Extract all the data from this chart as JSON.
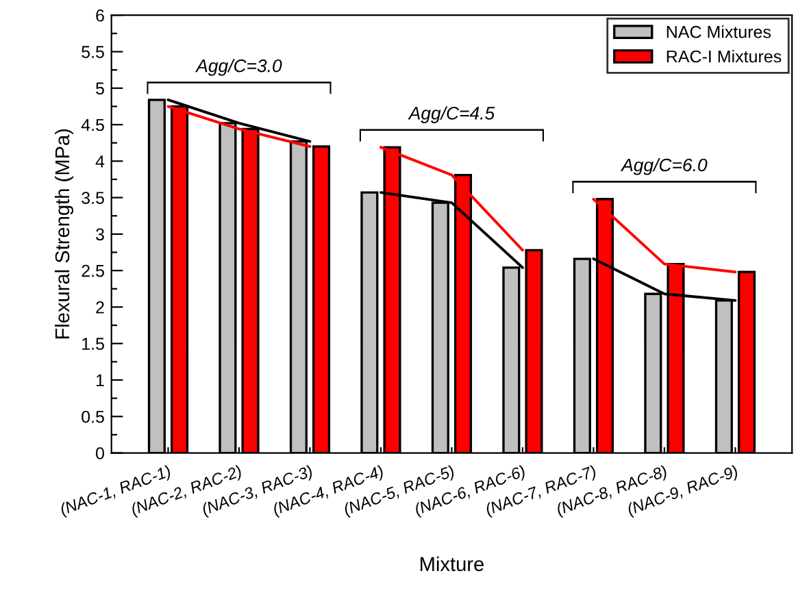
{
  "chart_data": {
    "type": "bar",
    "xlabel": "Mixture",
    "ylabel": "Flexural Strength (MPa)",
    "categories": [
      "(NAC-1, RAC-1)",
      "(NAC-2, RAC-2)",
      "(NAC-3, RAC-3)",
      "(NAC-4, RAC-4)",
      "(NAC-5, RAC-5)",
      "(NAC-6, RAC-6)",
      "(NAC-7, RAC-7)",
      "(NAC-8, RAC-8)",
      "(NAC-9, RAC-9)"
    ],
    "series": [
      {
        "name": "NAC Mixtures",
        "color": "#c0c0c0",
        "values": [
          4.84,
          4.52,
          4.27,
          3.57,
          3.43,
          2.54,
          2.66,
          2.18,
          2.09
        ]
      },
      {
        "name": "RAC-I Mixtures",
        "color": "#ff0000",
        "values": [
          4.75,
          4.44,
          4.2,
          4.19,
          3.81,
          2.78,
          3.48,
          2.59,
          2.48
        ]
      },
      {
        "type": "line",
        "color": "#000000",
        "values": [
          4.84,
          4.52,
          4.27,
          null,
          null,
          null,
          null,
          null,
          null
        ]
      },
      {
        "type": "line",
        "color": "#ff0000",
        "values": [
          4.75,
          4.44,
          4.2,
          null,
          null,
          null,
          null,
          null,
          null
        ]
      },
      {
        "type": "line",
        "color": "#000000",
        "values": [
          null,
          null,
          null,
          3.57,
          3.43,
          2.54,
          null,
          null,
          null
        ]
      },
      {
        "type": "line",
        "color": "#ff0000",
        "values": [
          null,
          null,
          null,
          4.19,
          3.81,
          2.78,
          null,
          null,
          null
        ]
      },
      {
        "type": "line",
        "color": "#000000",
        "values": [
          null,
          null,
          null,
          null,
          null,
          null,
          2.66,
          2.18,
          2.09
        ]
      },
      {
        "type": "line",
        "color": "#ff0000",
        "values": [
          null,
          null,
          null,
          null,
          null,
          null,
          3.48,
          2.59,
          2.48
        ]
      }
    ],
    "ylim": [
      0,
      6
    ],
    "yticks": [
      0,
      {
        "value": 0.25,
        "label": null
      },
      0.5,
      {
        "value": 0.75,
        "label": null
      },
      1,
      {
        "value": 1.25,
        "label": null
      },
      1.5,
      {
        "value": 1.75,
        "label": null
      },
      2,
      {
        "value": 2.25,
        "label": null
      },
      2.5,
      {
        "value": 2.75,
        "label": null
      },
      3,
      {
        "value": 3.25,
        "label": null
      },
      3.5,
      {
        "value": 3.75,
        "label": null
      },
      4,
      {
        "value": 4.25,
        "label": null
      },
      4.5,
      {
        "value": 4.75,
        "label": null
      },
      5,
      {
        "value": 5.25,
        "label": null
      },
      5.5,
      {
        "value": 5.75,
        "label": null
      },
      6
    ],
    "annotations": [
      "Agg/C=3.0",
      "Agg/C=4.5",
      "Agg/C=6.0"
    ],
    "legend": "top right",
    "grid": false
  }
}
